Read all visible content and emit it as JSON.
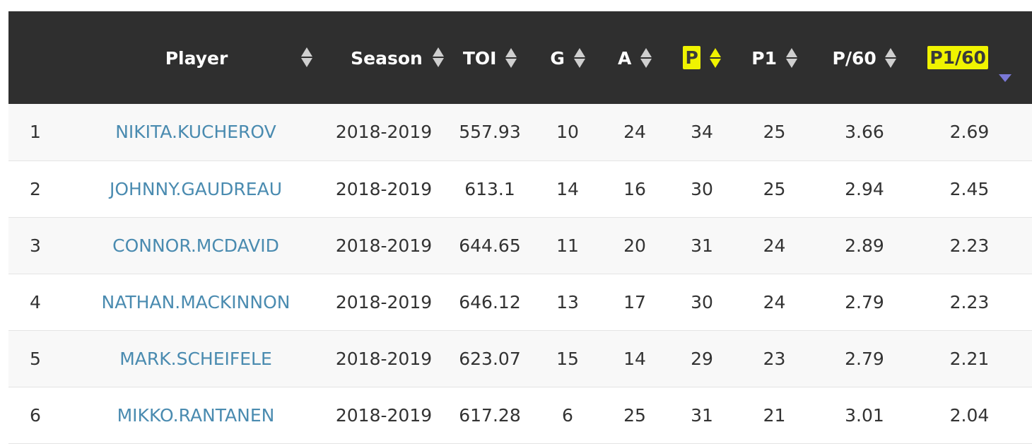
{
  "headers": {
    "player": "Player",
    "season": "Season",
    "toi": "TOI",
    "g": "G",
    "a": "A",
    "p": "P",
    "p1": "P1",
    "p60": "P/60",
    "p160": "P1/60"
  },
  "colors": {
    "header_bg": "#2f2f2f",
    "highlight": "#f0f300",
    "player_link": "#4a8bb0",
    "sort_desc_indicator": "#7a78d6"
  },
  "sort": {
    "column": "P1/60",
    "direction": "desc"
  },
  "rows": [
    {
      "rank": "1",
      "player": "NIKITA.KUCHEROV",
      "season": "2018-2019",
      "toi": "557.93",
      "g": "10",
      "a": "24",
      "p": "34",
      "p1": "25",
      "p60": "3.66",
      "p160": "2.69"
    },
    {
      "rank": "2",
      "player": "JOHNNY.GAUDREAU",
      "season": "2018-2019",
      "toi": "613.1",
      "g": "14",
      "a": "16",
      "p": "30",
      "p1": "25",
      "p60": "2.94",
      "p160": "2.45"
    },
    {
      "rank": "3",
      "player": "CONNOR.MCDAVID",
      "season": "2018-2019",
      "toi": "644.65",
      "g": "11",
      "a": "20",
      "p": "31",
      "p1": "24",
      "p60": "2.89",
      "p160": "2.23"
    },
    {
      "rank": "4",
      "player": "NATHAN.MACKINNON",
      "season": "2018-2019",
      "toi": "646.12",
      "g": "13",
      "a": "17",
      "p": "30",
      "p1": "24",
      "p60": "2.79",
      "p160": "2.23"
    },
    {
      "rank": "5",
      "player": "MARK.SCHEIFELE",
      "season": "2018-2019",
      "toi": "623.07",
      "g": "15",
      "a": "14",
      "p": "29",
      "p1": "23",
      "p60": "2.79",
      "p160": "2.21"
    },
    {
      "rank": "6",
      "player": "MIKKO.RANTANEN",
      "season": "2018-2019",
      "toi": "617.28",
      "g": "6",
      "a": "25",
      "p": "31",
      "p1": "21",
      "p60": "3.01",
      "p160": "2.04"
    }
  ]
}
